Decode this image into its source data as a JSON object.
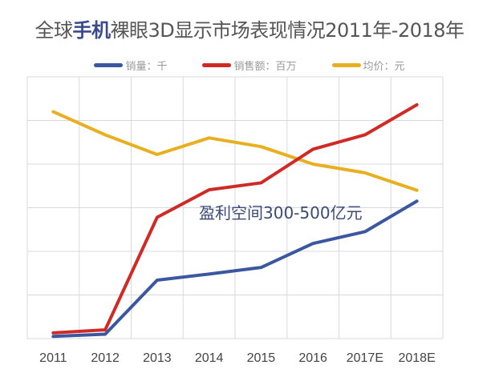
{
  "title": {
    "prefix": "全球",
    "highlight": "手机",
    "suffix": "裸眼3D显示市场表现情况2011年-2018年"
  },
  "chart_data": {
    "type": "line",
    "title": "全球手机裸眼3D显示市场表现情况2011年-2018年",
    "categories": [
      "2011",
      "2012",
      "2013",
      "2014",
      "2015",
      "2016",
      "2017E",
      "2018E"
    ],
    "ylim": [
      0,
      6
    ],
    "grid": true,
    "legend": "top",
    "series": [
      {
        "name": "销量：千",
        "color": "#3b57a0",
        "values": [
          0.05,
          0.1,
          1.34,
          1.48,
          1.63,
          2.18,
          2.45,
          3.15
        ]
      },
      {
        "name": "销售额：百万",
        "color": "#d02a26",
        "values": [
          0.13,
          0.2,
          2.78,
          3.41,
          3.57,
          4.34,
          4.67,
          5.36
        ]
      },
      {
        "name": "均价：元",
        "color": "#e8b020",
        "values": [
          5.2,
          4.67,
          4.22,
          4.6,
          4.4,
          4.0,
          3.8,
          3.4
        ]
      }
    ],
    "annotation": "盈利空间300-500亿元"
  }
}
